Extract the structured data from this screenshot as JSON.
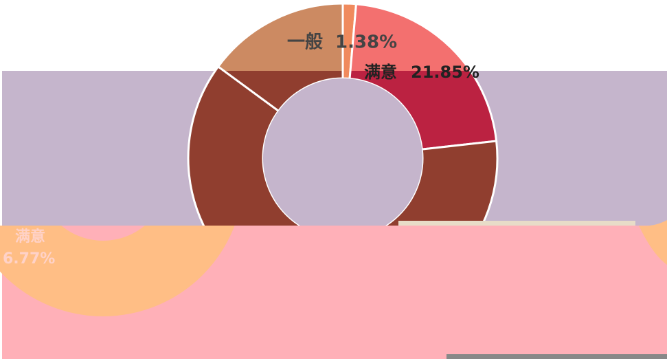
{
  "chart_data": [
    {
      "type": "donut",
      "categories": [
        "一般",
        "满意",
        null,
        null
      ],
      "values": [
        1.38,
        21.85,
        61.85,
        14.92
      ],
      "value_labels": [
        "1.38%",
        "21.85%",
        null,
        null
      ],
      "colors": [
        "#f08a5d",
        "#f3706f",
        "#903e2f",
        "#cc8a62"
      ],
      "band_colors": [
        "#f08a5d",
        "#bb2241",
        "#903e2f",
        "#903e2f"
      ]
    },
    {
      "type": "donut",
      "categories": [
        "满意"
      ],
      "values": [
        6.77
      ],
      "value_labels": [
        "6.77%"
      ],
      "colors": [
        "#ffbe85"
      ]
    }
  ]
}
